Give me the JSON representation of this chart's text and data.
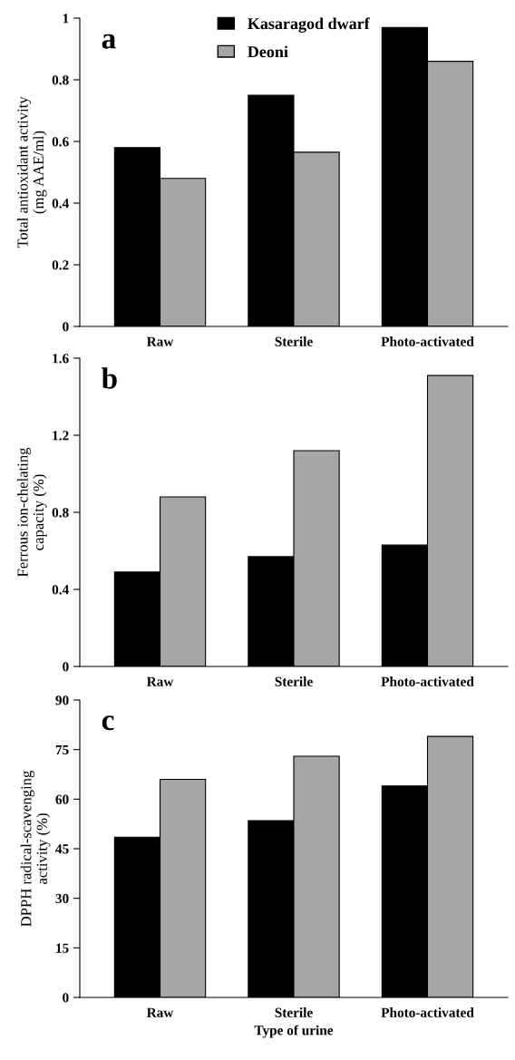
{
  "chart_data": [
    {
      "type": "bar",
      "ylabel": "Total antioxidant activity\n(mg AAE/ml)",
      "categories": [
        "Raw",
        "Sterile",
        "Photo-activated"
      ],
      "ylim": [
        0,
        1
      ],
      "yticks": [
        0,
        0.2,
        0.4,
        0.6,
        0.8,
        {
          "value": 1,
          "label": "1"
        }
      ],
      "legend": "top",
      "annotations": [
        "a"
      ],
      "grid": false,
      "series": [
        {
          "name": "Kasaragod dwarf",
          "color": "#000000",
          "values": [
            0.58,
            0.75,
            0.97
          ]
        },
        {
          "name": "Deoni",
          "color": "#a6a6a6",
          "values": [
            0.48,
            0.565,
            0.86
          ]
        }
      ]
    },
    {
      "type": "bar",
      "ylabel": "Ferrous ion-chelating\ncapacity (%)",
      "categories": [
        "Raw",
        "Sterile",
        "Photo-activated"
      ],
      "ylim": [
        0,
        1.6
      ],
      "yticks": [
        0,
        0.4,
        0.8,
        1.2,
        1.6
      ],
      "legend": false,
      "annotations": [
        "b"
      ],
      "grid": false,
      "series": [
        {
          "color": "#000000",
          "values": [
            0.49,
            0.57,
            0.63
          ]
        },
        {
          "color": "#a6a6a6",
          "values": [
            0.88,
            1.12,
            1.51
          ]
        }
      ]
    },
    {
      "type": "bar",
      "ylabel": "DPPH radical-scavenging\nactivity (%)",
      "xlabel": "Type of urine",
      "categories": [
        "Raw",
        "Sterile",
        "Photo-activated"
      ],
      "ylim": [
        0,
        90
      ],
      "yticks": [
        0,
        15,
        30,
        45,
        60,
        75,
        90
      ],
      "legend": false,
      "annotations": [
        "c"
      ],
      "grid": false,
      "series": [
        {
          "color": "#000000",
          "values": [
            48.5,
            53.5,
            64
          ]
        },
        {
          "color": "#a6a6a6",
          "values": [
            66,
            73,
            79
          ]
        }
      ]
    }
  ]
}
